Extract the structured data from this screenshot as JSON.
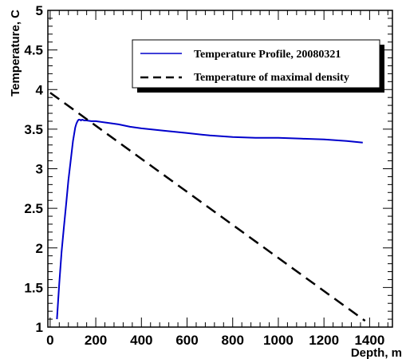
{
  "chart_data": {
    "type": "line",
    "xlabel": "Depth, m",
    "ylabel": "Temperature, C",
    "xlim": [
      -10,
      1500
    ],
    "ylim": [
      1,
      5
    ],
    "x_ticks": [
      0,
      200,
      400,
      600,
      800,
      1000,
      1200,
      1400
    ],
    "x_tick_labels": [
      "0",
      "200",
      "400",
      "600",
      "800",
      "1000",
      "1200",
      "1400"
    ],
    "y_ticks": [
      1,
      1.5,
      2,
      2.5,
      3,
      3.5,
      4,
      4.5,
      5
    ],
    "y_tick_labels": [
      "1",
      "1.5",
      "2",
      "2.5",
      "3",
      "3.5",
      "4",
      "4.5",
      "5"
    ],
    "grid": false,
    "legend_position": "top-right",
    "series": [
      {
        "name": "Temperature Profile, 20080321",
        "color": "#0000cc",
        "style": "solid",
        "x": [
          30,
          40,
          50,
          60,
          70,
          80,
          90,
          100,
          110,
          115,
          120,
          125,
          130,
          135,
          140,
          150,
          160,
          180,
          200,
          250,
          300,
          350,
          400,
          500,
          600,
          700,
          800,
          900,
          1000,
          1100,
          1200,
          1300,
          1370
        ],
        "y": [
          1.1,
          1.55,
          1.95,
          2.25,
          2.55,
          2.85,
          3.1,
          3.35,
          3.52,
          3.57,
          3.6,
          3.62,
          3.62,
          3.61,
          3.62,
          3.61,
          3.61,
          3.6,
          3.6,
          3.58,
          3.56,
          3.53,
          3.51,
          3.48,
          3.45,
          3.42,
          3.4,
          3.39,
          3.39,
          3.38,
          3.37,
          3.35,
          3.33
        ]
      },
      {
        "name": "Temperature of maximal density",
        "color": "#000000",
        "style": "dashed",
        "x": [
          0,
          1380
        ],
        "y": [
          3.96,
          1.08
        ]
      }
    ]
  }
}
